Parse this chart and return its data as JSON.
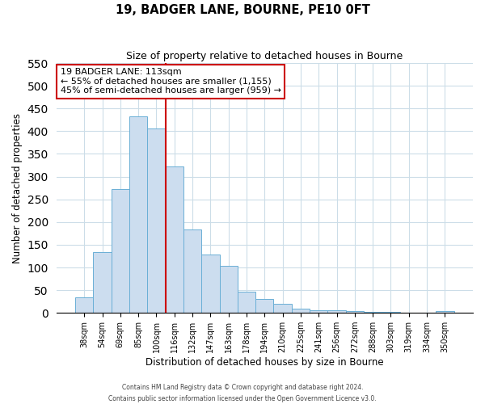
{
  "title": "19, BADGER LANE, BOURNE, PE10 0FT",
  "subtitle": "Size of property relative to detached houses in Bourne",
  "xlabel": "Distribution of detached houses by size in Bourne",
  "ylabel": "Number of detached properties",
  "categories": [
    "38sqm",
    "54sqm",
    "69sqm",
    "85sqm",
    "100sqm",
    "116sqm",
    "132sqm",
    "147sqm",
    "163sqm",
    "178sqm",
    "194sqm",
    "210sqm",
    "225sqm",
    "241sqm",
    "256sqm",
    "272sqm",
    "288sqm",
    "303sqm",
    "319sqm",
    "334sqm",
    "350sqm"
  ],
  "values": [
    35,
    133,
    272,
    433,
    406,
    322,
    184,
    128,
    103,
    46,
    30,
    20,
    9,
    6,
    5,
    4,
    3,
    2,
    1,
    1,
    4
  ],
  "bar_color": "#ccddef",
  "bar_edge_color": "#6aafd6",
  "vline_x": 4.5,
  "vline_color": "#cc0000",
  "annotation_title": "19 BADGER LANE: 113sqm",
  "annotation_line1": "← 55% of detached houses are smaller (1,155)",
  "annotation_line2": "45% of semi-detached houses are larger (959) →",
  "annotation_box_color": "#ffffff",
  "annotation_box_edge": "#cc0000",
  "ylim": [
    0,
    550
  ],
  "yticks": [
    0,
    50,
    100,
    150,
    200,
    250,
    300,
    350,
    400,
    450,
    500,
    550
  ],
  "footer1": "Contains HM Land Registry data © Crown copyright and database right 2024.",
  "footer2": "Contains public sector information licensed under the Open Government Licence v3.0."
}
